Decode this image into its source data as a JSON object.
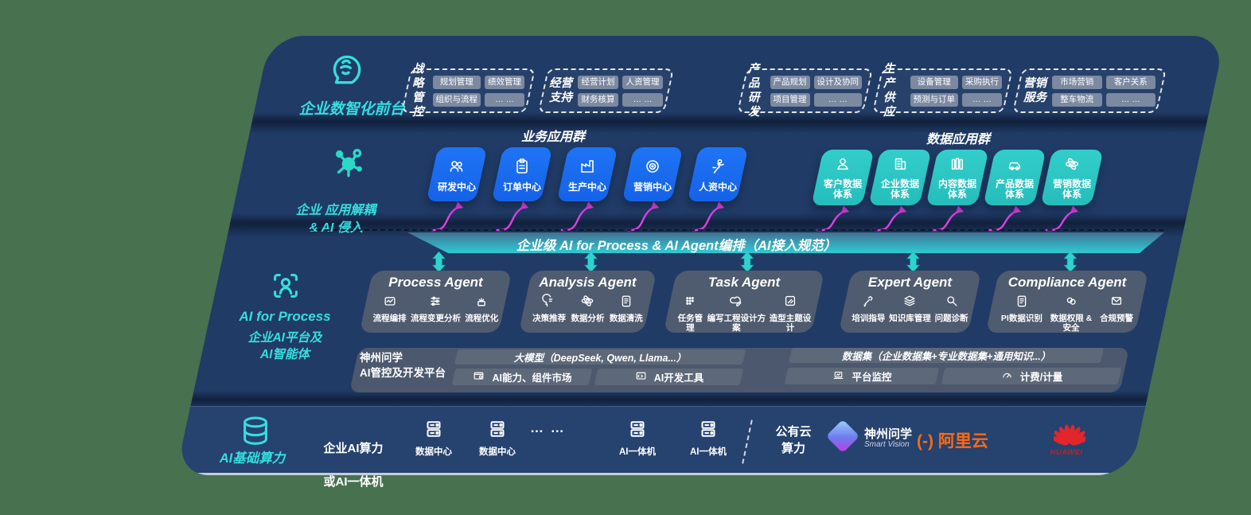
{
  "colors": {
    "background": "#47714F",
    "stage_navy": "#203B66",
    "bottom_band": "#26426F",
    "tile_blue": "#1A6CF0",
    "tile_teal": "#2BC6C3",
    "accent_cyan": "#35DEDE",
    "ribbon_teal": "#2FC7D2",
    "arrow_magenta": "#E23EE8",
    "agent_box": "#525D70",
    "alibaba_orange": "#FF6A12",
    "huawei_red": "#E2262C"
  },
  "layer1": {
    "icon": "brain-head-icon",
    "label": "企业数智化前台",
    "groups": [
      {
        "name": "战略\n管控",
        "chips": [
          "规划管理",
          "绩效管理",
          "组织与流程",
          "… …"
        ]
      },
      {
        "name": "经营\n支持",
        "chips": [
          "经营计划",
          "人资管理",
          "财务核算",
          "… …"
        ]
      },
      {
        "name": "产品\n研发",
        "chips": [
          "产品规划",
          "设计及协同",
          "项目管理",
          "… …"
        ]
      },
      {
        "name": "生产\n供应",
        "chips": [
          "设备管理",
          "采购执行",
          "预测与订单",
          "… …"
        ]
      },
      {
        "name": "营销\n服务",
        "chips": [
          "市场营销",
          "客户关系",
          "整车物流",
          "… …"
        ]
      }
    ]
  },
  "layer2": {
    "icon": "molecule-icon",
    "label_line1": "企业 应用解耦",
    "label_line2": "& AI 侵入",
    "business_header": "业务应用群",
    "data_header": "数据应用群",
    "business_tiles": [
      {
        "label": "研发中心",
        "icon": "team-icon"
      },
      {
        "label": "订单中心",
        "icon": "clipboard-icon"
      },
      {
        "label": "生产中心",
        "icon": "factory-icon"
      },
      {
        "label": "营销中心",
        "icon": "target-icon"
      },
      {
        "label": "人资中心",
        "icon": "hr-runner-icon"
      }
    ],
    "data_tiles": [
      {
        "label": "客户数据\n体系",
        "icon": "user-icon"
      },
      {
        "label": "企业数据\n体系",
        "icon": "building-icon"
      },
      {
        "label": "内容数据\n体系",
        "icon": "content-books-icon"
      },
      {
        "label": "产品数据\n体系",
        "icon": "car-icon"
      },
      {
        "label": "营销数据\n体系",
        "icon": "atom-icon"
      }
    ]
  },
  "ribbon": {
    "label": "企业级 AI for Process & AI Agent编排（AI接入规范）"
  },
  "layer3": {
    "icon": "scan-person-icon",
    "label_line1": "AI for Process",
    "label_line2": "企业AI平台及",
    "label_line3": "AI智能体",
    "agents": [
      {
        "title": "Process Agent",
        "items": [
          {
            "label": "流程编排",
            "icon": "workflow-icon"
          },
          {
            "label": "流程变更分析",
            "icon": "sliders-icon"
          },
          {
            "label": "流程优化",
            "icon": "optimize-icon"
          }
        ]
      },
      {
        "title": "Analysis Agent",
        "items": [
          {
            "label": "决策推荐",
            "icon": "decision-icon"
          },
          {
            "label": "数据分析",
            "icon": "atom-icon"
          },
          {
            "label": "数据清洗",
            "icon": "dataclean-icon"
          }
        ]
      },
      {
        "title": "Task Agent",
        "items": [
          {
            "label": "任务管理",
            "icon": "taskgrid-icon"
          },
          {
            "label": "编写工程设计方案",
            "icon": "cloud-edit-icon"
          },
          {
            "label": "造型主题设计",
            "icon": "design-icon"
          }
        ]
      },
      {
        "title": "Expert Agent",
        "items": [
          {
            "label": "培训指导",
            "icon": "training-icon"
          },
          {
            "label": "知识库管理",
            "icon": "knowledge-icon"
          },
          {
            "label": "问题诊断",
            "icon": "diagnose-icon"
          }
        ]
      },
      {
        "title": "Compliance Agent",
        "items": [
          {
            "label": "PI数据识别",
            "icon": "id-card-icon"
          },
          {
            "label": "数据权限 &\n安全",
            "icon": "permission-icon"
          },
          {
            "label": "合规预警",
            "icon": "alert-mail-icon"
          }
        ]
      }
    ]
  },
  "platform": {
    "title_line1": "神州问学",
    "title_line2": "AI管控及开发平台",
    "model_bar": "大模型（DeepSeek, Qwen, Llama...）",
    "left_bars": [
      {
        "label": "AI能力、组件市场",
        "icon": "market-icon"
      },
      {
        "label": "AI开发工具",
        "icon": "devtools-icon"
      }
    ],
    "dataset_bar": "数据集（企业数据集+专业数据集+通用知识...）",
    "right_bars": [
      {
        "label": "平台监控",
        "icon": "monitor-icon"
      },
      {
        "label": "计费/计量",
        "icon": "meter-icon"
      }
    ]
  },
  "layer4": {
    "icon": "database-icon",
    "label": "AI基础算力",
    "compute_line1": "企业AI算力",
    "compute_line2": "或AI一体机",
    "units": [
      {
        "label": "数据中心",
        "icon": "server-icon"
      },
      {
        "label": "数据中心",
        "icon": "server-icon"
      },
      {
        "label": "AI一体机",
        "icon": "server-icon"
      },
      {
        "label": "AI一体机",
        "icon": "server-icon"
      }
    ],
    "dots": "… …",
    "cloud_line1": "公有云",
    "cloud_line2": "算力",
    "vendors": [
      {
        "name": "神州问学",
        "sub": "Smart Vision",
        "icon": "smart-vision-logo"
      },
      {
        "name": "阿里云",
        "mark": "(-)",
        "icon": "alibaba-cloud-logo"
      },
      {
        "name": "HUAWEI",
        "icon": "huawei-logo"
      }
    ]
  }
}
